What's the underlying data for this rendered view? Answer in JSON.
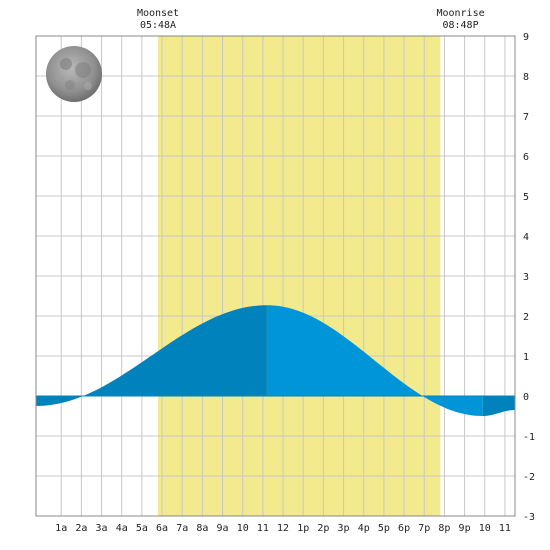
{
  "chart_data": {
    "type": "area",
    "title": "",
    "xlabel": "",
    "ylabel": "",
    "x_range_hours": [
      -0.25,
      23.5
    ],
    "ylim": [
      -3,
      9
    ],
    "y_ticks": [
      -3,
      -2,
      -1,
      0,
      1,
      2,
      3,
      4,
      5,
      6,
      7,
      8,
      9
    ],
    "x_ticks": [
      {
        "hour": 1,
        "label": "1a"
      },
      {
        "hour": 2,
        "label": "2a"
      },
      {
        "hour": 3,
        "label": "3a"
      },
      {
        "hour": 4,
        "label": "4a"
      },
      {
        "hour": 5,
        "label": "5a"
      },
      {
        "hour": 6,
        "label": "6a"
      },
      {
        "hour": 7,
        "label": "7a"
      },
      {
        "hour": 8,
        "label": "8a"
      },
      {
        "hour": 9,
        "label": "9a"
      },
      {
        "hour": 10,
        "label": "10"
      },
      {
        "hour": 11,
        "label": "11"
      },
      {
        "hour": 12,
        "label": "12"
      },
      {
        "hour": 13,
        "label": "1p"
      },
      {
        "hour": 14,
        "label": "2p"
      },
      {
        "hour": 15,
        "label": "3p"
      },
      {
        "hour": 16,
        "label": "4p"
      },
      {
        "hour": 17,
        "label": "5p"
      },
      {
        "hour": 18,
        "label": "6p"
      },
      {
        "hour": 19,
        "label": "7p"
      },
      {
        "hour": 20,
        "label": "8p"
      },
      {
        "hour": 21,
        "label": "9p"
      },
      {
        "hour": 22,
        "label": "10"
      },
      {
        "hour": 23,
        "label": "11"
      }
    ],
    "grid": true,
    "daylight_band": {
      "start_hour": 5.8,
      "end_hour": 19.8
    },
    "tide_extremes": [
      {
        "hour": -0.25,
        "height": -0.25
      },
      {
        "hour": 11.2,
        "height": 2.27
      },
      {
        "hour": 21.9,
        "height": -0.5
      },
      {
        "hour": 23.5,
        "height": -0.35
      }
    ],
    "tide_points": [
      {
        "hour": 1.0,
        "height": 0.0
      },
      {
        "hour": 19.1,
        "height": 0.0
      }
    ],
    "moon_events": [
      {
        "label": "Moonset",
        "time": "05:48A",
        "hour": 5.8
      },
      {
        "label": "Moonrise",
        "time": "08:48P",
        "hour": 20.8
      }
    ],
    "moon_phase": "full-moon",
    "colors": {
      "daylight": "#f3ea8d",
      "tide_rising": "#0083bc",
      "tide_falling": "#0095d8",
      "grid": "#c8c8c8",
      "frame": "#888888"
    }
  }
}
